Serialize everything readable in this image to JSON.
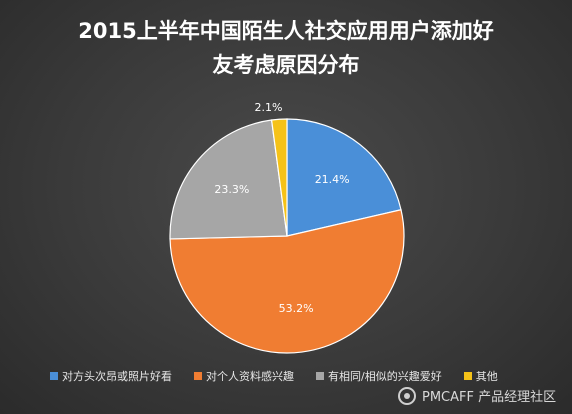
{
  "chart_data": {
    "type": "pie",
    "title_lines": [
      "2015上半年中国陌生人社交应用用户添加好",
      "友考虑原因分布"
    ],
    "series": [
      {
        "name": "对方头次昂或照片好看",
        "value": 21.4,
        "label": "21.4%",
        "color": "#4a8fd8"
      },
      {
        "name": "对个人资料感兴趣",
        "value": 53.2,
        "label": "53.2%",
        "color": "#f07d32"
      },
      {
        "name": "有相同/相似的兴趣爱好",
        "value": 23.3,
        "label": "23.3%",
        "color": "#a6a6a6"
      },
      {
        "name": "其他",
        "value": 2.1,
        "label": "2.1%",
        "color": "#f5c218"
      }
    ],
    "legend_position": "bottom-left",
    "start_angle": "12 o'clock",
    "direction": "clockwise"
  },
  "watermark": {
    "text": "PMCAFF 产品经理社区"
  }
}
